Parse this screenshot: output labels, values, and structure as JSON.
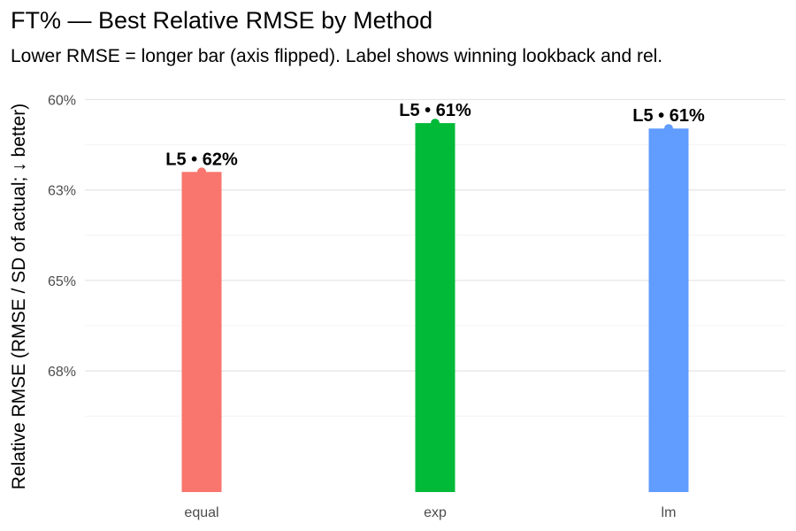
{
  "chart_data": {
    "type": "bar",
    "title": "FT% — Best Relative RMSE by Method",
    "subtitle": "Lower RMSE = longer bar (axis flipped). Label shows winning lookback and rel.",
    "ylabel": "Relative RMSE (RMSE / SD of actual; ↓ better)",
    "xlabel": "",
    "y_reversed": true,
    "ylim": [
      0.594,
      0.7085
    ],
    "y_ticks": [
      0.6,
      0.625,
      0.65,
      0.675
    ],
    "y_tick_labels": [
      "60%",
      "63%",
      "65%",
      "68%"
    ],
    "grid": true,
    "categories": [
      "equal",
      "exp",
      "lm"
    ],
    "values": [
      0.62,
      0.6065,
      0.608
    ],
    "labels": [
      "L5 • 62%",
      "L5 • 61%",
      "L5 • 61%"
    ],
    "colors": [
      "#F8766D",
      "#00BA38",
      "#619CFF"
    ]
  }
}
